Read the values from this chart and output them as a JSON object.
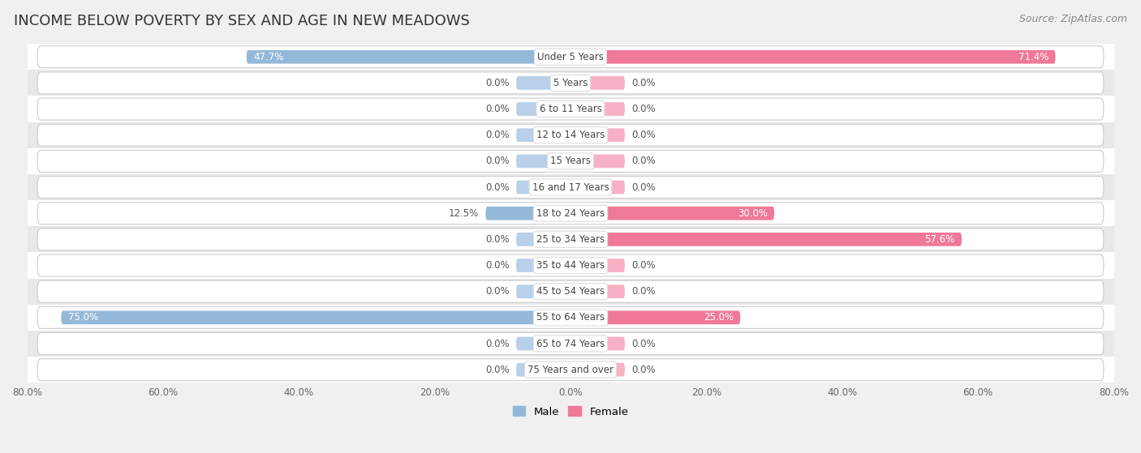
{
  "title": "INCOME BELOW POVERTY BY SEX AND AGE IN NEW MEADOWS",
  "source": "Source: ZipAtlas.com",
  "categories": [
    "Under 5 Years",
    "5 Years",
    "6 to 11 Years",
    "12 to 14 Years",
    "15 Years",
    "16 and 17 Years",
    "18 to 24 Years",
    "25 to 34 Years",
    "35 to 44 Years",
    "45 to 54 Years",
    "55 to 64 Years",
    "65 to 74 Years",
    "75 Years and over"
  ],
  "male": [
    47.7,
    0.0,
    0.0,
    0.0,
    0.0,
    0.0,
    12.5,
    0.0,
    0.0,
    0.0,
    75.0,
    0.0,
    0.0
  ],
  "female": [
    71.4,
    0.0,
    0.0,
    0.0,
    0.0,
    0.0,
    30.0,
    57.6,
    0.0,
    0.0,
    25.0,
    0.0,
    0.0
  ],
  "male_color": "#94b8d8",
  "female_color": "#f07898",
  "male_color_light": "#b8d0e8",
  "female_color_light": "#f8b0c4",
  "male_label": "Male",
  "female_label": "Female",
  "axis_max": 80.0,
  "bar_height": 0.52,
  "background_color": "#f0f0f0",
  "row_colors": [
    "#ffffff",
    "#e8e8e8"
  ],
  "pill_color": "#ffffff",
  "pill_border": "#cccccc",
  "title_fontsize": 13,
  "source_fontsize": 9,
  "label_fontsize": 8.5,
  "category_fontsize": 8.5,
  "zero_bar_width": 8.0
}
